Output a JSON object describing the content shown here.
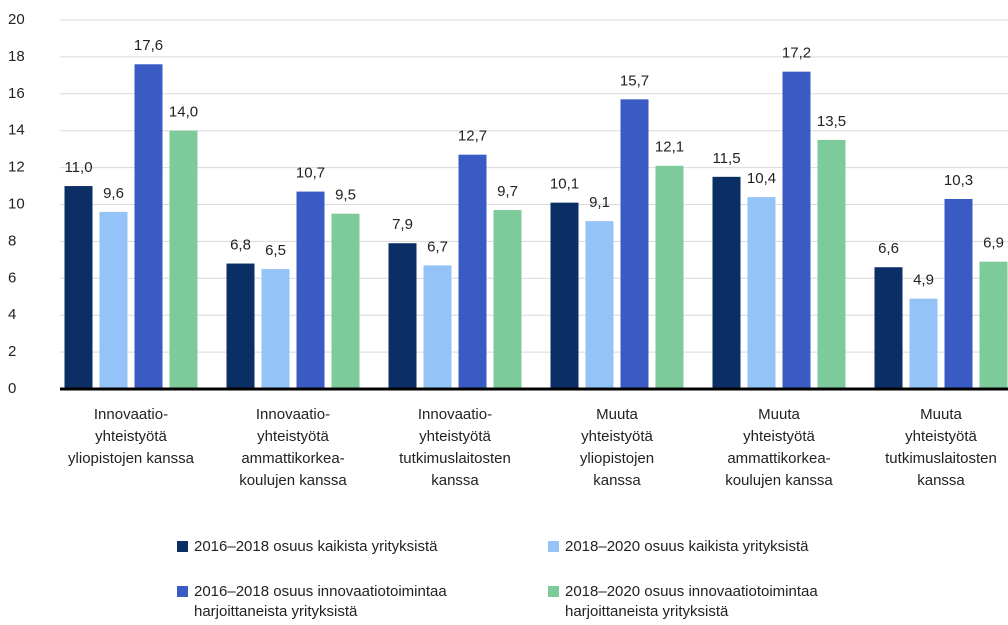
{
  "chart_data": {
    "type": "bar",
    "categories": [
      "Innovaatio-\nyhteistyötä\nyliopistojen kanssa",
      "Innovaatio-\nyhteistyötä\nammattikorkea-\nkoulujen kanssa",
      "Innovaatio-\nyhteistyötä\ntutkimuslaitosten\nkanssa",
      "Muuta\nyhteistyötä\nyliopistojen\nkanssa",
      "Muuta\nyhteistyötä\nammattikorkea-\nkoulujen kanssa",
      "Muuta\nyhteistyötä\ntutkimuslaitosten\nkanssa"
    ],
    "series": [
      {
        "name": "2016–2018 osuus kaikista yrityksistä",
        "color": "#0b2e64",
        "values": [
          11.0,
          6.8,
          7.9,
          10.1,
          11.5,
          6.6
        ],
        "value_labels": [
          "11,0",
          "6,8",
          "7,9",
          "10,1",
          "11,5",
          "6,6"
        ]
      },
      {
        "name": "2018–2020 osuus kaikista yrityksistä",
        "color": "#93c3f7",
        "values": [
          9.6,
          6.5,
          6.7,
          9.1,
          10.4,
          4.9
        ],
        "value_labels": [
          "9,6",
          "6,5",
          "6,7",
          "9,1",
          "10,4",
          "4,9"
        ]
      },
      {
        "name": "2016–2018 osuus innovaatiotoimintaa\nharjoittaneista yrityksistä",
        "color": "#3a5bc4",
        "values": [
          17.6,
          10.7,
          12.7,
          15.7,
          17.2,
          10.3
        ],
        "value_labels": [
          "17,6",
          "10,7",
          "12,7",
          "15,7",
          "17,2",
          "10,3"
        ]
      },
      {
        "name": "2018–2020 osuus innovaatiotoimintaa\nharjoittaneista yrityksistä",
        "color": "#7dca9b",
        "values": [
          14.0,
          9.5,
          9.7,
          12.1,
          13.5,
          6.9
        ],
        "value_labels": [
          "14,0",
          "9,5",
          "9,7",
          "12,1",
          "13,5",
          "6,9"
        ]
      }
    ],
    "ylim": [
      0,
      20
    ],
    "yticks": [
      0,
      2,
      4,
      6,
      8,
      10,
      12,
      14,
      16,
      18,
      20
    ],
    "grid": true
  }
}
